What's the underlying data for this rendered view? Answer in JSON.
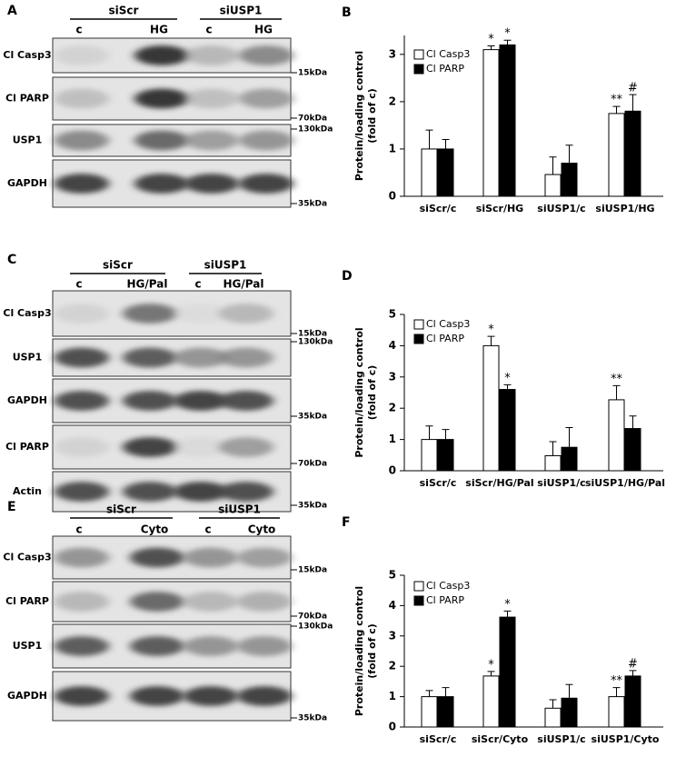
{
  "blots": [
    {
      "panel": "A",
      "groups": [
        "siScr",
        "siUSP1"
      ],
      "lanes": [
        "c",
        "HG",
        "c",
        "HG"
      ],
      "rows": [
        {
          "label": "Cl Casp3",
          "marker": "15kDa"
        },
        {
          "label": "Cl PARP",
          "marker": "70kDa"
        },
        {
          "label": "USP1",
          "marker": "130kDa"
        },
        {
          "label": "GAPDH",
          "marker": "35kDa"
        }
      ]
    },
    {
      "panel": "C",
      "groups": [
        "siScr",
        "siUSP1"
      ],
      "lanes": [
        "c",
        "HG/Pal",
        "c",
        "HG/Pal"
      ],
      "rows": [
        {
          "label": "Cl Casp3",
          "marker": "15kDa"
        },
        {
          "label": "USP1",
          "marker": "130kDa"
        },
        {
          "label": "GAPDH",
          "marker": "35kDa"
        },
        {
          "label": "Cl PARP",
          "marker": "70kDa"
        },
        {
          "label": "Actin",
          "marker": "35kDa"
        }
      ]
    },
    {
      "panel": "E",
      "groups": [
        "siScr",
        "siUSP1"
      ],
      "lanes": [
        "c",
        "Cyto",
        "c",
        "Cyto"
      ],
      "rows": [
        {
          "label": "Cl Casp3",
          "marker": "15kDa"
        },
        {
          "label": "Cl PARP",
          "marker": "70kDa"
        },
        {
          "label": "USP1",
          "marker": "130kDa"
        },
        {
          "label": "GAPDH",
          "marker": "35kDa"
        }
      ]
    }
  ],
  "chart_data": [
    {
      "type": "bar",
      "panel": "B",
      "ylabel": [
        "Protein/loading control",
        "(fold of c)"
      ],
      "categories": [
        "siScr/c",
        "siScr/HG",
        "siUSP1/c",
        "siUSP1/HG"
      ],
      "series": [
        {
          "name": "Cl Casp3",
          "color": "#ffffff",
          "values": [
            1.0,
            3.1,
            0.46,
            1.75
          ],
          "errors": [
            0.4,
            0.08,
            0.37,
            0.15
          ],
          "labels": [
            null,
            "*",
            null,
            "**"
          ]
        },
        {
          "name": "Cl PARP",
          "color": "#000000",
          "values": [
            1.0,
            3.2,
            0.7,
            1.8
          ],
          "errors": [
            0.2,
            0.1,
            0.38,
            0.35
          ],
          "labels": [
            null,
            "*",
            null,
            "#"
          ]
        }
      ],
      "ylim": [
        0,
        3.4
      ],
      "yticks": [
        0,
        1,
        2,
        3
      ]
    },
    {
      "type": "bar",
      "panel": "D",
      "ylabel": [
        "Protein/loading control",
        "(fold of c)"
      ],
      "categories": [
        "siScr/c",
        "siScr/HG/Pal",
        "siUSP1/c",
        "siUSP1/HG/Pal"
      ],
      "series": [
        {
          "name": "Cl Casp3",
          "color": "#ffffff",
          "values": [
            1.0,
            4.0,
            0.48,
            2.27
          ],
          "errors": [
            0.43,
            0.3,
            0.45,
            0.45
          ],
          "labels": [
            null,
            "*",
            null,
            "**"
          ]
        },
        {
          "name": "Cl PARP",
          "color": "#000000",
          "values": [
            1.0,
            2.6,
            0.75,
            1.35
          ],
          "errors": [
            0.32,
            0.15,
            0.63,
            0.4
          ],
          "labels": [
            null,
            "*",
            null,
            null
          ]
        }
      ],
      "ylim": [
        0,
        5
      ],
      "yticks": [
        0,
        1,
        2,
        3,
        4,
        5
      ]
    },
    {
      "type": "bar",
      "panel": "F",
      "ylabel": [
        "Protein/loading control",
        "(fold of c)"
      ],
      "categories": [
        "siScr/c",
        "siScr/Cyto",
        "siUSP1/c",
        "siUSP1/Cyto"
      ],
      "series": [
        {
          "name": "Cl Casp3",
          "color": "#ffffff",
          "values": [
            1.0,
            1.68,
            0.62,
            1.0
          ],
          "errors": [
            0.2,
            0.15,
            0.28,
            0.3
          ],
          "labels": [
            null,
            "*",
            null,
            "**"
          ]
        },
        {
          "name": "Cl PARP",
          "color": "#000000",
          "values": [
            1.0,
            3.62,
            0.95,
            1.68
          ],
          "errors": [
            0.3,
            0.2,
            0.45,
            0.18
          ],
          "labels": [
            null,
            "*",
            null,
            "#"
          ]
        }
      ],
      "ylim": [
        0,
        5
      ],
      "yticks": [
        0,
        1,
        2,
        3,
        4,
        5
      ]
    }
  ]
}
